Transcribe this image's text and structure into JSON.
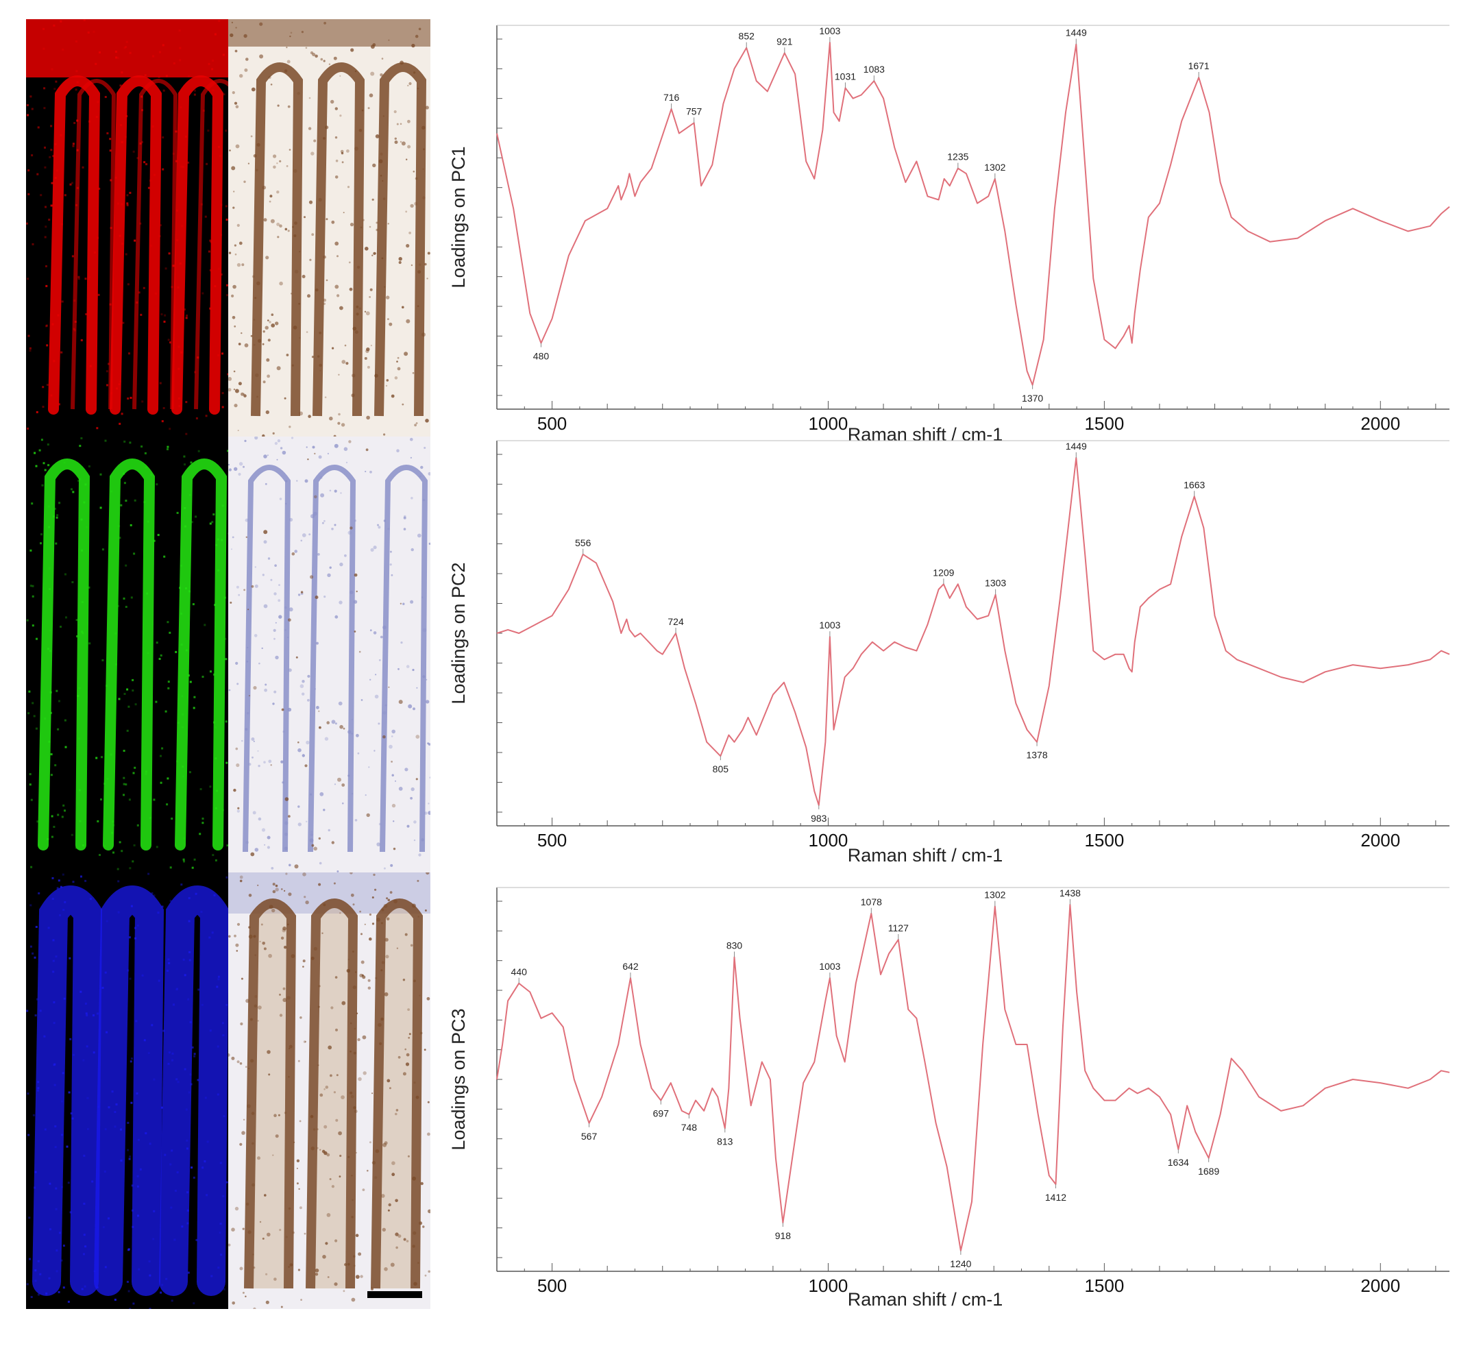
{
  "colors": {
    "curve": "#e0707a",
    "axis": "#555555",
    "red_channel": "#e80000",
    "green_channel": "#22dd11",
    "blue_channel": "#1a1aee",
    "dab_stain": "#7a4a28",
    "hematoxylin": "#8a8fc8",
    "scale_bar": "#000000"
  },
  "images": {
    "left_column": [
      {
        "name": "red-channel-map",
        "color": "#e80000"
      },
      {
        "name": "green-channel-map",
        "color": "#22dd11"
      },
      {
        "name": "blue-channel-map",
        "color": "#1a1aee"
      }
    ],
    "right_column": [
      {
        "name": "ihc-stain-top"
      },
      {
        "name": "ihc-stain-middle"
      },
      {
        "name": "ihc-stain-bottom"
      }
    ]
  },
  "chart_data": [
    {
      "type": "line",
      "xlabel": "Raman shift / cm-1",
      "ylabel": "Loadings on PC1",
      "xlim": [
        400,
        2125
      ],
      "ylim": [
        -1.0,
        1.0
      ],
      "x_ticks": [
        500,
        1000,
        1500,
        2000
      ],
      "grid": false,
      "series": [
        {
          "x": [
            400,
            430,
            460,
            480,
            500,
            530,
            560,
            600,
            620,
            625,
            635,
            640,
            650,
            660,
            680,
            716,
            730,
            757,
            770,
            790,
            810,
            830,
            852,
            870,
            890,
            921,
            940,
            960,
            975,
            990,
            1003,
            1010,
            1020,
            1031,
            1045,
            1060,
            1083,
            1100,
            1120,
            1140,
            1160,
            1180,
            1200,
            1210,
            1220,
            1235,
            1250,
            1270,
            1290,
            1302,
            1320,
            1340,
            1360,
            1370,
            1390,
            1410,
            1430,
            1449,
            1465,
            1480,
            1500,
            1520,
            1535,
            1545,
            1550,
            1555,
            1565,
            1580,
            1600,
            1620,
            1640,
            1671,
            1690,
            1710,
            1730,
            1760,
            1800,
            1850,
            1900,
            1950,
            2000,
            2050,
            2090,
            2110,
            2125
          ],
          "y": [
            0.48,
            0.05,
            -0.55,
            -0.72,
            -0.58,
            -0.22,
            -0.02,
            0.05,
            0.18,
            0.1,
            0.18,
            0.25,
            0.12,
            0.2,
            0.28,
            0.62,
            0.48,
            0.54,
            0.18,
            0.3,
            0.65,
            0.85,
            0.97,
            0.78,
            0.72,
            0.94,
            0.82,
            0.32,
            0.22,
            0.5,
            1.0,
            0.6,
            0.55,
            0.74,
            0.68,
            0.7,
            0.78,
            0.68,
            0.4,
            0.2,
            0.32,
            0.12,
            0.1,
            0.22,
            0.18,
            0.28,
            0.25,
            0.08,
            0.12,
            0.22,
            -0.08,
            -0.5,
            -0.88,
            -0.96,
            -0.7,
            0.05,
            0.6,
            0.99,
            0.3,
            -0.35,
            -0.7,
            -0.75,
            -0.68,
            -0.62,
            -0.72,
            -0.55,
            -0.3,
            0.0,
            0.08,
            0.3,
            0.55,
            0.8,
            0.6,
            0.2,
            0.0,
            -0.08,
            -0.14,
            -0.12,
            -0.02,
            0.05,
            -0.02,
            -0.08,
            -0.05,
            0.02,
            0.06
          ]
        }
      ],
      "annotations": [
        {
          "x": 480,
          "label": "480",
          "position": "below"
        },
        {
          "x": 716,
          "label": "716",
          "position": "above"
        },
        {
          "x": 757,
          "label": "757",
          "position": "above"
        },
        {
          "x": 852,
          "label": "852",
          "position": "above"
        },
        {
          "x": 921,
          "label": "921",
          "position": "above"
        },
        {
          "x": 1003,
          "label": "1003",
          "position": "above"
        },
        {
          "x": 1031,
          "label": "1031",
          "position": "above"
        },
        {
          "x": 1083,
          "label": "1083",
          "position": "above"
        },
        {
          "x": 1235,
          "label": "1235",
          "position": "above"
        },
        {
          "x": 1302,
          "label": "1302",
          "position": "above"
        },
        {
          "x": 1370,
          "label": "1370",
          "position": "below"
        },
        {
          "x": 1449,
          "label": "1449",
          "position": "above"
        },
        {
          "x": 1671,
          "label": "1671",
          "position": "above"
        }
      ]
    },
    {
      "type": "line",
      "xlabel": "Raman shift / cm-1",
      "ylabel": "Loadings on PC2",
      "xlim": [
        400,
        2125
      ],
      "ylim": [
        -1.0,
        1.0
      ],
      "x_ticks": [
        500,
        1000,
        1500,
        2000
      ],
      "grid": false,
      "series": [
        {
          "x": [
            400,
            420,
            440,
            470,
            500,
            530,
            556,
            580,
            610,
            625,
            635,
            640,
            650,
            660,
            690,
            700,
            724,
            740,
            760,
            780,
            805,
            820,
            830,
            845,
            855,
            870,
            900,
            920,
            940,
            960,
            975,
            983,
            995,
            1003,
            1010,
            1020,
            1030,
            1045,
            1060,
            1080,
            1100,
            1120,
            1140,
            1160,
            1180,
            1200,
            1209,
            1220,
            1235,
            1250,
            1270,
            1290,
            1303,
            1320,
            1340,
            1360,
            1378,
            1400,
            1420,
            1449,
            1465,
            1480,
            1500,
            1520,
            1535,
            1545,
            1550,
            1555,
            1565,
            1580,
            1600,
            1620,
            1640,
            1663,
            1680,
            1700,
            1720,
            1740,
            1780,
            1820,
            1860,
            1900,
            1950,
            2000,
            2050,
            2090,
            2110,
            2125
          ],
          "y": [
            0.0,
            0.02,
            0.0,
            0.05,
            0.1,
            0.25,
            0.45,
            0.4,
            0.18,
            0.0,
            0.08,
            0.02,
            -0.02,
            0.0,
            -0.1,
            -0.12,
            0.0,
            -0.2,
            -0.4,
            -0.62,
            -0.7,
            -0.58,
            -0.62,
            -0.55,
            -0.48,
            -0.58,
            -0.35,
            -0.28,
            -0.45,
            -0.65,
            -0.9,
            -0.98,
            -0.62,
            -0.02,
            -0.55,
            -0.4,
            -0.25,
            -0.2,
            -0.12,
            -0.05,
            -0.1,
            -0.05,
            -0.08,
            -0.1,
            0.05,
            0.25,
            0.28,
            0.2,
            0.28,
            0.15,
            0.08,
            0.1,
            0.22,
            -0.1,
            -0.4,
            -0.55,
            -0.62,
            -0.3,
            0.2,
            1.0,
            0.45,
            -0.1,
            -0.15,
            -0.12,
            -0.12,
            -0.2,
            -0.22,
            -0.05,
            0.15,
            0.2,
            0.25,
            0.28,
            0.55,
            0.78,
            0.6,
            0.1,
            -0.1,
            -0.15,
            -0.2,
            -0.25,
            -0.28,
            -0.22,
            -0.18,
            -0.2,
            -0.18,
            -0.15,
            -0.1,
            -0.12
          ]
        }
      ],
      "annotations": [
        {
          "x": 556,
          "label": "556",
          "position": "above"
        },
        {
          "x": 724,
          "label": "724",
          "position": "above"
        },
        {
          "x": 805,
          "label": "805",
          "position": "below"
        },
        {
          "x": 983,
          "label": "983",
          "position": "below"
        },
        {
          "x": 1003,
          "label": "1003",
          "position": "above"
        },
        {
          "x": 1209,
          "label": "1209",
          "position": "above"
        },
        {
          "x": 1303,
          "label": "1303",
          "position": "above"
        },
        {
          "x": 1378,
          "label": "1378",
          "position": "below"
        },
        {
          "x": 1449,
          "label": "1449",
          "position": "above"
        },
        {
          "x": 1663,
          "label": "1663",
          "position": "above"
        }
      ]
    },
    {
      "type": "line",
      "xlabel": "Raman shift / cm-1",
      "ylabel": "Loadings on PC3",
      "xlim": [
        400,
        2125
      ],
      "ylim": [
        -1.0,
        1.0
      ],
      "x_ticks": [
        500,
        1000,
        1500,
        2000
      ],
      "grid": false,
      "series": [
        {
          "x": [
            400,
            410,
            420,
            440,
            460,
            480,
            500,
            520,
            540,
            567,
            590,
            620,
            642,
            660,
            680,
            697,
            715,
            725,
            735,
            748,
            760,
            775,
            790,
            800,
            813,
            820,
            830,
            840,
            860,
            880,
            895,
            905,
            918,
            935,
            955,
            975,
            995,
            1003,
            1015,
            1030,
            1050,
            1078,
            1095,
            1110,
            1127,
            1145,
            1160,
            1175,
            1195,
            1215,
            1240,
            1260,
            1280,
            1302,
            1320,
            1340,
            1360,
            1380,
            1400,
            1412,
            1425,
            1438,
            1450,
            1465,
            1480,
            1500,
            1520,
            1545,
            1560,
            1580,
            1600,
            1620,
            1634,
            1650,
            1665,
            1689,
            1710,
            1730,
            1750,
            1780,
            1820,
            1860,
            1900,
            1950,
            2000,
            2050,
            2090,
            2110,
            2125
          ],
          "y": [
            0.0,
            0.2,
            0.45,
            0.55,
            0.5,
            0.35,
            0.38,
            0.3,
            0.0,
            -0.25,
            -0.1,
            0.2,
            0.58,
            0.2,
            -0.05,
            -0.12,
            -0.02,
            -0.1,
            -0.18,
            -0.2,
            -0.12,
            -0.18,
            -0.05,
            -0.1,
            -0.28,
            -0.05,
            0.7,
            0.35,
            -0.15,
            0.1,
            0.0,
            -0.45,
            -0.82,
            -0.45,
            -0.02,
            0.1,
            0.45,
            0.58,
            0.25,
            0.1,
            0.55,
            0.95,
            0.6,
            0.72,
            0.8,
            0.4,
            0.35,
            0.1,
            -0.25,
            -0.5,
            -0.98,
            -0.7,
            0.2,
            0.99,
            0.4,
            0.2,
            0.2,
            -0.2,
            -0.55,
            -0.6,
            0.3,
            1.0,
            0.5,
            0.05,
            -0.05,
            -0.12,
            -0.12,
            -0.05,
            -0.08,
            -0.05,
            -0.1,
            -0.2,
            -0.4,
            -0.15,
            -0.3,
            -0.45,
            -0.2,
            0.12,
            0.05,
            -0.1,
            -0.18,
            -0.15,
            -0.05,
            0.0,
            -0.02,
            -0.05,
            0.0,
            0.05,
            0.04
          ]
        }
      ],
      "annotations": [
        {
          "x": 440,
          "label": "440",
          "position": "above"
        },
        {
          "x": 567,
          "label": "567",
          "position": "below"
        },
        {
          "x": 642,
          "label": "642",
          "position": "above"
        },
        {
          "x": 697,
          "label": "697",
          "position": "below"
        },
        {
          "x": 748,
          "label": "748",
          "position": "below"
        },
        {
          "x": 813,
          "label": "813",
          "position": "below"
        },
        {
          "x": 830,
          "label": "830",
          "position": "above"
        },
        {
          "x": 918,
          "label": "918",
          "position": "below"
        },
        {
          "x": 1003,
          "label": "1003",
          "position": "above"
        },
        {
          "x": 1078,
          "label": "1078",
          "position": "above"
        },
        {
          "x": 1127,
          "label": "1127",
          "position": "above"
        },
        {
          "x": 1240,
          "label": "1240",
          "position": "below"
        },
        {
          "x": 1302,
          "label": "1302",
          "position": "above"
        },
        {
          "x": 1412,
          "label": "1412",
          "position": "below"
        },
        {
          "x": 1438,
          "label": "1438",
          "position": "above"
        },
        {
          "x": 1634,
          "label": "1634",
          "position": "below"
        },
        {
          "x": 1689,
          "label": "1689",
          "position": "below"
        }
      ]
    }
  ]
}
